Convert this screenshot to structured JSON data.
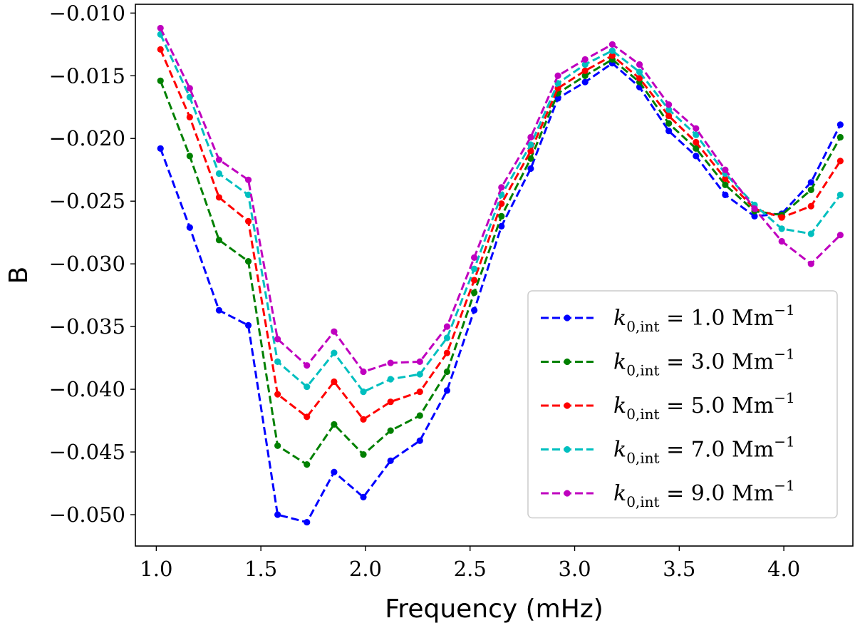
{
  "chart_data": {
    "type": "line",
    "title": "",
    "xlabel": "Frequency (mHz)",
    "ylabel": "B",
    "xlim": [
      0.9,
      4.33
    ],
    "ylim": [
      -0.0525,
      -0.0093
    ],
    "grid": false,
    "legend_position": "bottom-right",
    "xticks": [
      1.0,
      1.5,
      2.0,
      2.5,
      3.0,
      3.5,
      4.0
    ],
    "xtick_labels": [
      "1.0",
      "1.5",
      "2.0",
      "2.5",
      "3.0",
      "3.5",
      "4.0"
    ],
    "yticks": [
      -0.05,
      -0.045,
      -0.04,
      -0.035,
      -0.03,
      -0.025,
      -0.02,
      -0.015,
      -0.01
    ],
    "ytick_labels": [
      "−0.050",
      "−0.045",
      "−0.040",
      "−0.035",
      "−0.030",
      "−0.025",
      "−0.020",
      "−0.015",
      "−0.010"
    ],
    "x": [
      1.02,
      1.16,
      1.3,
      1.44,
      1.58,
      1.72,
      1.85,
      1.99,
      2.12,
      2.26,
      2.39,
      2.52,
      2.65,
      2.79,
      2.92,
      3.05,
      3.18,
      3.31,
      3.45,
      3.58,
      3.72,
      3.86,
      3.99,
      4.13,
      4.27
    ],
    "series": [
      {
        "name": "k0,int = 1.0 Mm⁻¹",
        "color": "#0000ff",
        "label_var": "k",
        "label_sub": "0,int",
        "label_eq": " = 1.0 Mm",
        "label_sup": "−1",
        "values": [
          -0.0208,
          -0.0271,
          -0.0337,
          -0.0349,
          -0.05,
          -0.0506,
          -0.0466,
          -0.0486,
          -0.0457,
          -0.0441,
          -0.0401,
          -0.0337,
          -0.027,
          -0.0224,
          -0.0168,
          -0.0155,
          -0.014,
          -0.0159,
          -0.0194,
          -0.0214,
          -0.0245,
          -0.0262,
          -0.026,
          -0.0235,
          -0.0189
        ]
      },
      {
        "name": "k0,int = 3.0 Mm⁻¹",
        "color": "#008000",
        "label_var": "k",
        "label_sub": "0,int",
        "label_eq": " = 3.0 Mm",
        "label_sup": "−1",
        "values": [
          -0.0154,
          -0.0214,
          -0.0281,
          -0.0298,
          -0.0445,
          -0.046,
          -0.0428,
          -0.0452,
          -0.0433,
          -0.0421,
          -0.0386,
          -0.0323,
          -0.0262,
          -0.0216,
          -0.0164,
          -0.015,
          -0.0137,
          -0.0155,
          -0.0188,
          -0.0208,
          -0.0237,
          -0.0258,
          -0.0261,
          -0.0241,
          -0.0199
        ]
      },
      {
        "name": "k0,int = 5.0 Mm⁻¹",
        "color": "#ff0000",
        "label_var": "k",
        "label_sub": "0,int",
        "label_eq": " = 5.0 Mm",
        "label_sup": "−1",
        "values": [
          -0.0129,
          -0.0183,
          -0.0247,
          -0.0266,
          -0.0404,
          -0.0422,
          -0.0394,
          -0.0424,
          -0.041,
          -0.0402,
          -0.0371,
          -0.0313,
          -0.0252,
          -0.021,
          -0.016,
          -0.0146,
          -0.0134,
          -0.0152,
          -0.0182,
          -0.0203,
          -0.0232,
          -0.0256,
          -0.0263,
          -0.0254,
          -0.0218
        ]
      },
      {
        "name": "k0,int = 7.0 Mm⁻¹",
        "color": "#00bfbf",
        "label_var": "k",
        "label_sub": "0,int",
        "label_eq": " = 7.0 Mm",
        "label_sup": "−1",
        "values": [
          -0.0117,
          -0.0167,
          -0.0228,
          -0.0245,
          -0.0378,
          -0.0398,
          -0.0371,
          -0.0402,
          -0.0392,
          -0.0388,
          -0.0359,
          -0.0304,
          -0.0245,
          -0.0205,
          -0.0156,
          -0.0141,
          -0.013,
          -0.0147,
          -0.0177,
          -0.0197,
          -0.0228,
          -0.0253,
          -0.0272,
          -0.0276,
          -0.0245
        ]
      },
      {
        "name": "k0,int = 9.0 Mm⁻¹",
        "color": "#bf00bf",
        "label_var": "k",
        "label_sub": "0,int",
        "label_eq": " = 9.0 Mm",
        "label_sup": "−1",
        "values": [
          -0.0112,
          -0.016,
          -0.0217,
          -0.0233,
          -0.036,
          -0.0381,
          -0.0354,
          -0.0386,
          -0.0379,
          -0.0378,
          -0.035,
          -0.0295,
          -0.0239,
          -0.0199,
          -0.015,
          -0.0137,
          -0.0125,
          -0.0141,
          -0.0173,
          -0.0192,
          -0.0225,
          -0.0256,
          -0.0282,
          -0.03,
          -0.0277
        ]
      }
    ]
  }
}
